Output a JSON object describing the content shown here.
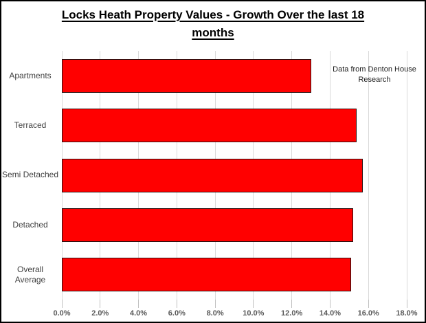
{
  "chart_data": {
    "type": "bar",
    "orientation": "horizontal",
    "title": "Locks Heath Property Values - Growth Over the last 18 months",
    "categories": [
      "Apartments",
      "Terraced",
      "Semi Detached",
      "Detached",
      "Overall Average"
    ],
    "values": [
      13.0,
      15.4,
      15.7,
      15.2,
      15.1
    ],
    "value_unit": "percent",
    "xlim": [
      0,
      18
    ],
    "x_tick_values": [
      0,
      2,
      4,
      6,
      8,
      10,
      12,
      14,
      16,
      18
    ],
    "x_tick_labels": [
      "0.0%",
      "2.0%",
      "4.0%",
      "6.0%",
      "8.0%",
      "10.0%",
      "12.0%",
      "14.0%",
      "16.0%",
      "18.0%"
    ],
    "annotation": "Data from Denton House Research",
    "legend": "none",
    "grid": "vertical-only",
    "colors": {
      "bar_fill": "#FF0000",
      "bar_border": "#2B0F0F",
      "gridline": "#D9D9D9",
      "tick": "#BFBFBF",
      "tick_label": "#595959",
      "category_label": "#3F3F3F",
      "title": "#000000",
      "annotation": "#1A1A1A",
      "frame_border": "#000000",
      "background": "#FFFFFF"
    }
  }
}
